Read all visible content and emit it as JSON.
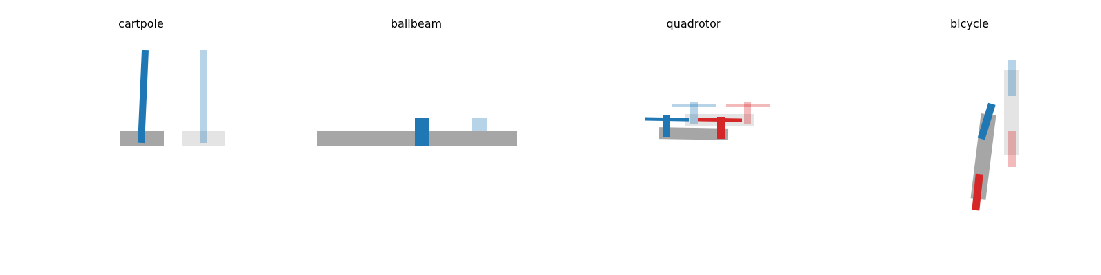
{
  "panels": [
    {
      "id": "cartpole",
      "title": "cartpole"
    },
    {
      "id": "ballbeam",
      "title": "ballbeam"
    },
    {
      "id": "quadrotor",
      "title": "quadrotor"
    },
    {
      "id": "bicycle",
      "title": "bicycle"
    }
  ],
  "colors": {
    "blue": "#1f77b4",
    "red": "#d62728",
    "body_gray": "#a6a6a6",
    "ghost_blue": "#a8cae2",
    "ghost_gray": "#e4e4e4",
    "ghost_red": "#efb1b2"
  }
}
